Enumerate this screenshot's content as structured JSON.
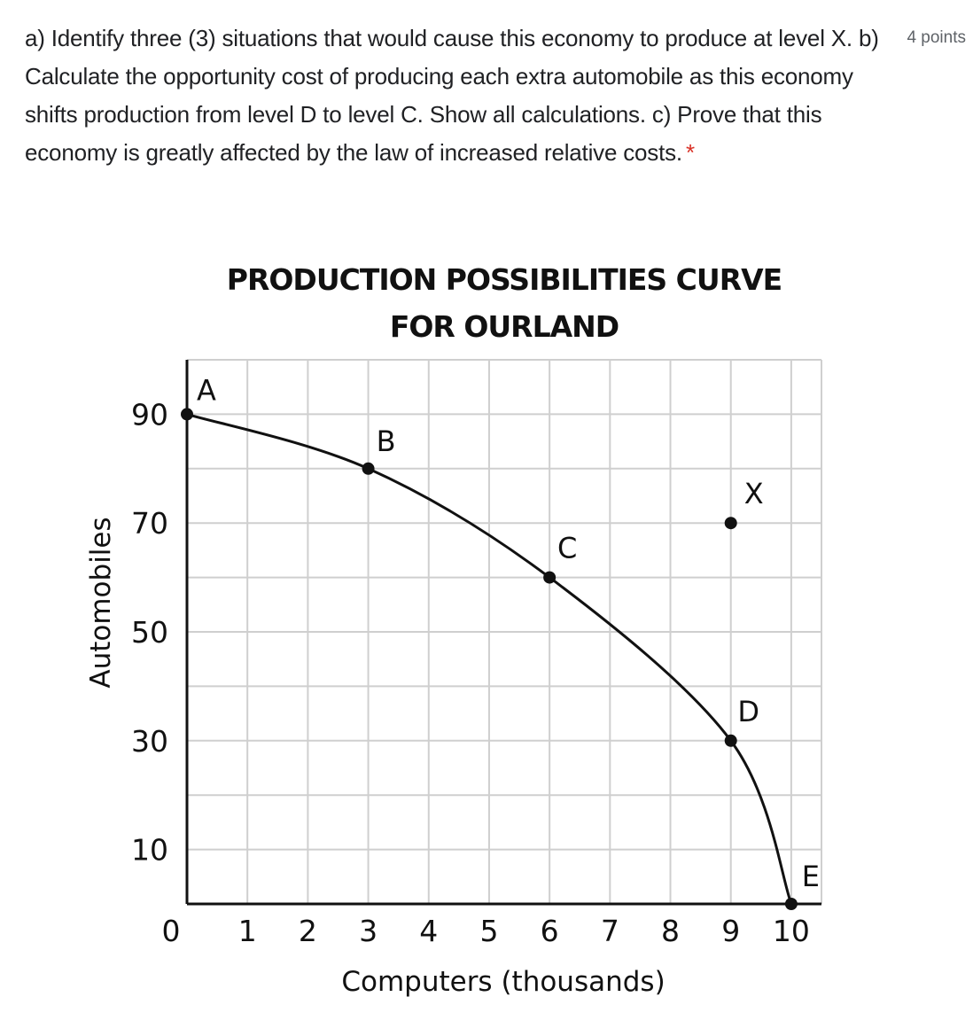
{
  "question": {
    "text": "a) Identify three (3) situations that would cause this economy to produce at level X. b) Calculate the opportunity cost of producing each extra automobile as this economy shifts production from level D to level C. Show all calculations. c) Prove that this economy is greatly affected by the law of increased relative costs.",
    "required_mark": "*",
    "points": "4 points"
  },
  "colors": {
    "required": "#d93025",
    "grid": "#cfcfcf",
    "ink": "#111111"
  },
  "chart_data": {
    "type": "line",
    "title": "PRODUCTION POSSIBILITIES CURVE",
    "subtitle": "FOR OURLAND",
    "xlabel": "Computers (thousands)",
    "ylabel": "Automobiles",
    "xlim": [
      0,
      10.5
    ],
    "ylim": [
      0,
      100
    ],
    "x_ticks": [
      "0",
      "1",
      "2",
      "3",
      "4",
      "5",
      "6",
      "7",
      "8",
      "9",
      "10"
    ],
    "y_ticks": [
      "90",
      "70",
      "50",
      "30",
      "10"
    ],
    "grid": true,
    "curve": [
      {
        "label": "A",
        "x": 0,
        "y": 90
      },
      {
        "label": "B",
        "x": 3,
        "y": 80
      },
      {
        "label": "C",
        "x": 6,
        "y": 60
      },
      {
        "label": "D",
        "x": 9,
        "y": 30
      },
      {
        "label": "E",
        "x": 10,
        "y": 0
      }
    ],
    "extra_points": [
      {
        "label": "X",
        "x": 9,
        "y": 70
      }
    ]
  }
}
